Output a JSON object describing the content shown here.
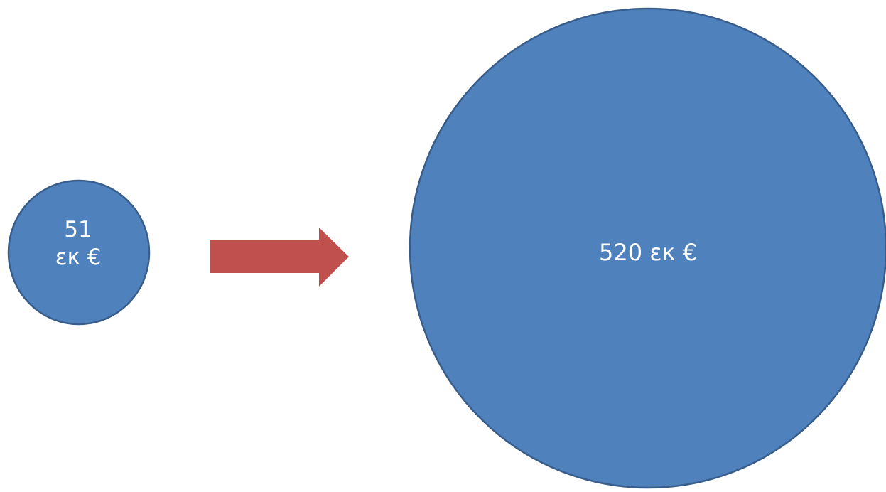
{
  "diagram": {
    "small_circle": {
      "line1": "51",
      "line2": "εκ €",
      "fill": "#4f81bd",
      "stroke": "#385d8a"
    },
    "arrow": {
      "fill": "#c0504d",
      "icon": "right-arrow-icon"
    },
    "big_circle": {
      "label": "520 εκ €",
      "fill": "#4f81bd",
      "stroke": "#385d8a"
    }
  }
}
